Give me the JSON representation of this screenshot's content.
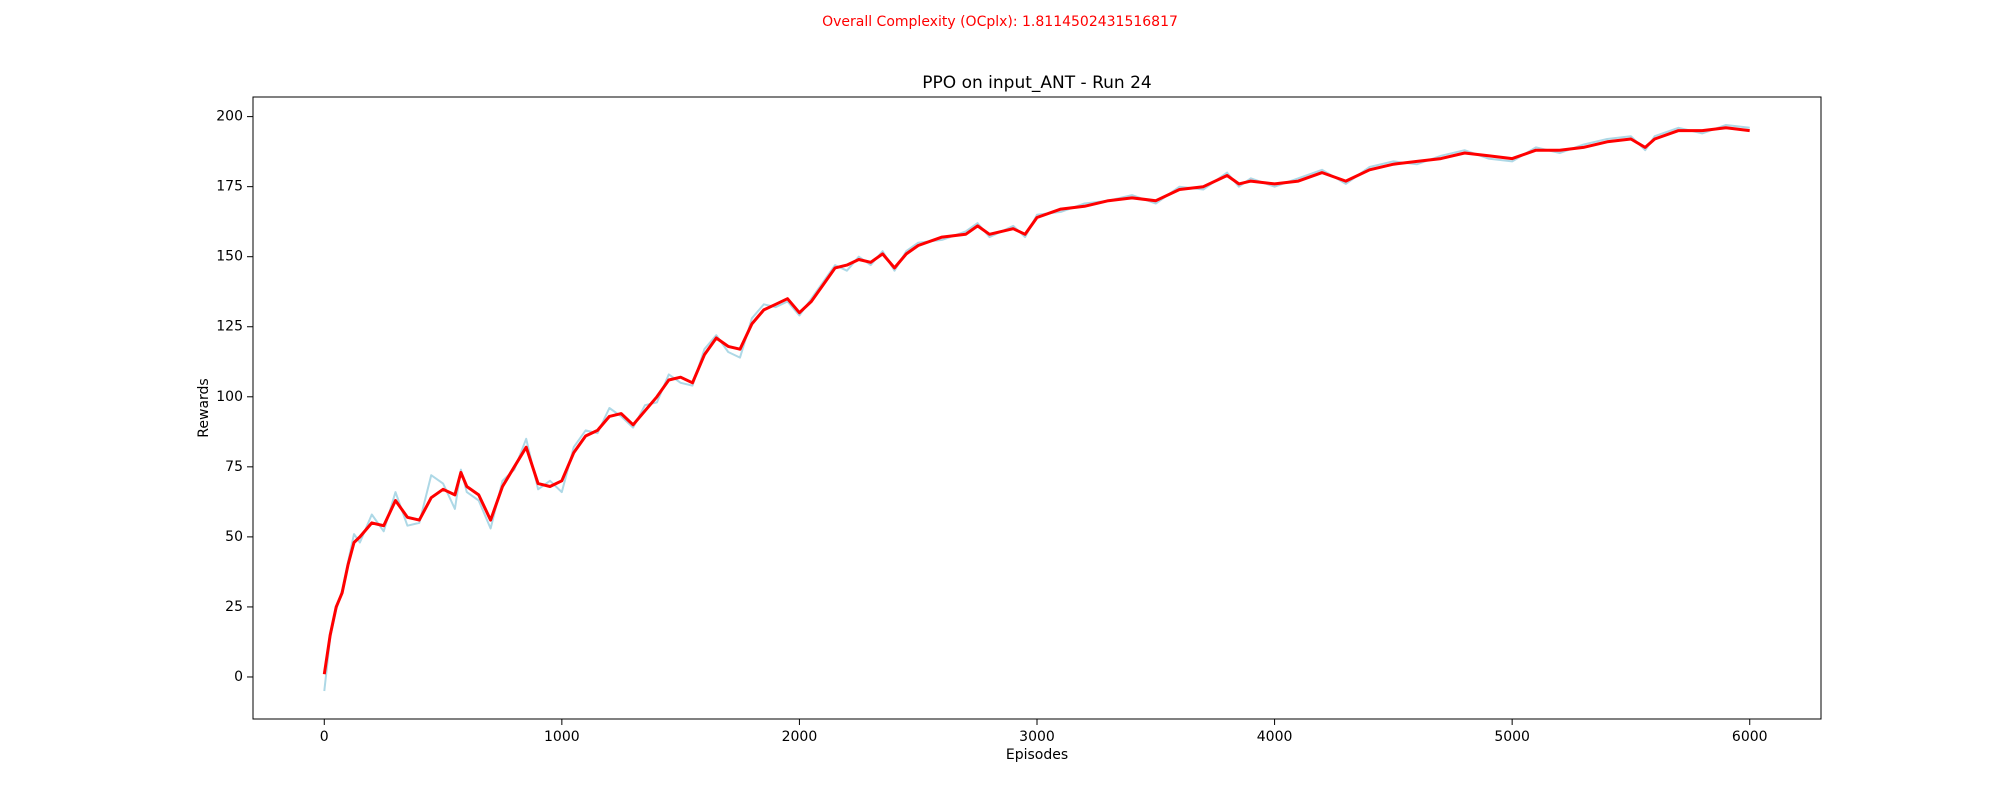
{
  "chart_data": {
    "type": "line",
    "suptitle": "Overall Complexity (OCplx): 1.8114502431516817",
    "suptitle_color": "#ff0000",
    "title": "PPO on input_ANT - Run 24",
    "xlabel": "Episodes",
    "ylabel": "Rewards",
    "x": [
      0,
      25,
      50,
      75,
      100,
      125,
      150,
      200,
      250,
      300,
      350,
      400,
      450,
      500,
      550,
      575,
      600,
      650,
      700,
      750,
      800,
      850,
      900,
      950,
      1000,
      1050,
      1100,
      1150,
      1200,
      1250,
      1300,
      1350,
      1400,
      1450,
      1500,
      1550,
      1600,
      1650,
      1700,
      1750,
      1800,
      1850,
      1900,
      1950,
      2000,
      2050,
      2100,
      2150,
      2200,
      2250,
      2300,
      2350,
      2400,
      2450,
      2500,
      2600,
      2700,
      2750,
      2800,
      2900,
      2950,
      3000,
      3100,
      3200,
      3300,
      3400,
      3500,
      3600,
      3700,
      3800,
      3850,
      3900,
      4000,
      4100,
      4200,
      4300,
      4400,
      4500,
      4600,
      4700,
      4800,
      4900,
      5000,
      5100,
      5200,
      5300,
      5400,
      5500,
      5560,
      5600,
      5700,
      5800,
      5900,
      6000
    ],
    "series": [
      {
        "color": "#add8e6",
        "width": 2,
        "values": [
          -5,
          14,
          24,
          31,
          41,
          51,
          48,
          58,
          52,
          66,
          54,
          55,
          72,
          69,
          60,
          74,
          66,
          63,
          53,
          70,
          74,
          85,
          67,
          70,
          66,
          82,
          88,
          87,
          96,
          93,
          89,
          97,
          98,
          108,
          105,
          104,
          117,
          122,
          116,
          114,
          128,
          133,
          132,
          134,
          129,
          135,
          141,
          147,
          145,
          150,
          147,
          152,
          145,
          152,
          155,
          156,
          159,
          162,
          157,
          161,
          157,
          165,
          166,
          169,
          170,
          172,
          169,
          175,
          174,
          180,
          175,
          178,
          175,
          178,
          181,
          176,
          182,
          184,
          183,
          186,
          188,
          185,
          184,
          189,
          187,
          190,
          192,
          193,
          188,
          193,
          196,
          194,
          197,
          196
        ]
      },
      {
        "color": "#ff0000",
        "width": 3,
        "values": [
          1,
          15,
          25,
          30,
          40,
          48,
          50,
          55,
          54,
          63,
          57,
          56,
          64,
          67,
          65,
          73,
          68,
          65,
          56,
          68,
          75,
          82,
          69,
          68,
          70,
          80,
          86,
          88,
          93,
          94,
          90,
          95,
          100,
          106,
          107,
          105,
          115,
          121,
          118,
          117,
          126,
          131,
          133,
          135,
          130,
          134,
          140,
          146,
          147,
          149,
          148,
          151,
          146,
          151,
          154,
          157,
          158,
          161,
          158,
          160,
          158,
          164,
          167,
          168,
          170,
          171,
          170,
          174,
          175,
          179,
          176,
          177,
          176,
          177,
          180,
          177,
          181,
          183,
          184,
          185,
          187,
          186,
          185,
          188,
          188,
          189,
          191,
          192,
          189,
          192,
          195,
          195,
          196,
          195
        ]
      }
    ],
    "xlim": [
      -300,
      6300
    ],
    "ylim": [
      -15,
      207
    ],
    "xticks": [
      0,
      1000,
      2000,
      3000,
      4000,
      5000,
      6000
    ],
    "yticks": [
      0,
      25,
      50,
      75,
      100,
      125,
      150,
      175,
      200
    ],
    "grid": false
  }
}
